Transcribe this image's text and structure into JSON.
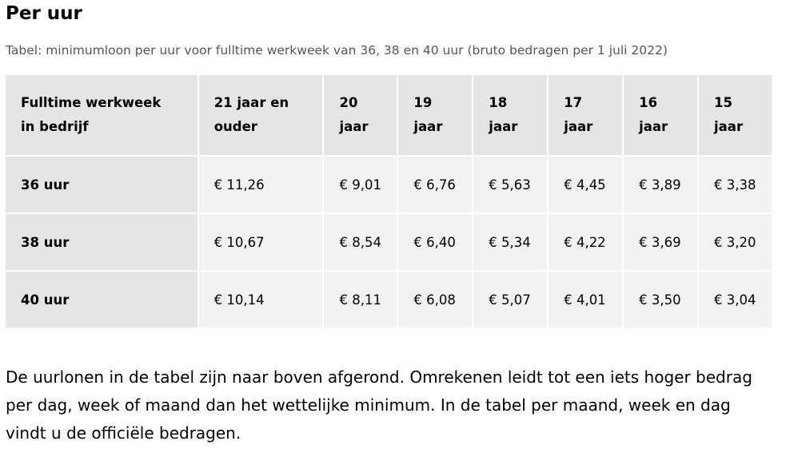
{
  "title": "Per uur",
  "caption": "Tabel: minimumloon per uur voor fulltime werkweek van 36, 38 en 40 uur (bruto bedragen per 1 juli 2022)",
  "table": {
    "headers": [
      "Fulltime werkweek in bedrijf",
      "21 jaar en ouder",
      "20 jaar",
      "19 jaar",
      "18 jaar",
      "17 jaar",
      "16 jaar",
      "15 jaar"
    ],
    "rows": [
      [
        "36 uur",
        "€ 11,26",
        "€ 9,01",
        "€ 6,76",
        "€ 5,63",
        "€ 4,45",
        "€ 3,89",
        "€ 3,38"
      ],
      [
        "38 uur",
        "€ 10,67",
        "€ 8,54",
        "€ 6,40",
        "€ 5,34",
        "€ 4,22",
        "€ 3,69",
        "€ 3,20"
      ],
      [
        "40 uur",
        "€ 10,14",
        "€ 8,11",
        "€ 6,08",
        "€ 5,07",
        "€ 4,01",
        "€ 3,50",
        "€ 3,04"
      ]
    ]
  },
  "note": "De uurlonen in de tabel zijn naar boven afgerond. Omrekenen leidt tot een iets hoger bedrag per dag, week of maand dan het wettelijke minimum. In de tabel per maand, week en dag vindt u de officiële bedragen."
}
